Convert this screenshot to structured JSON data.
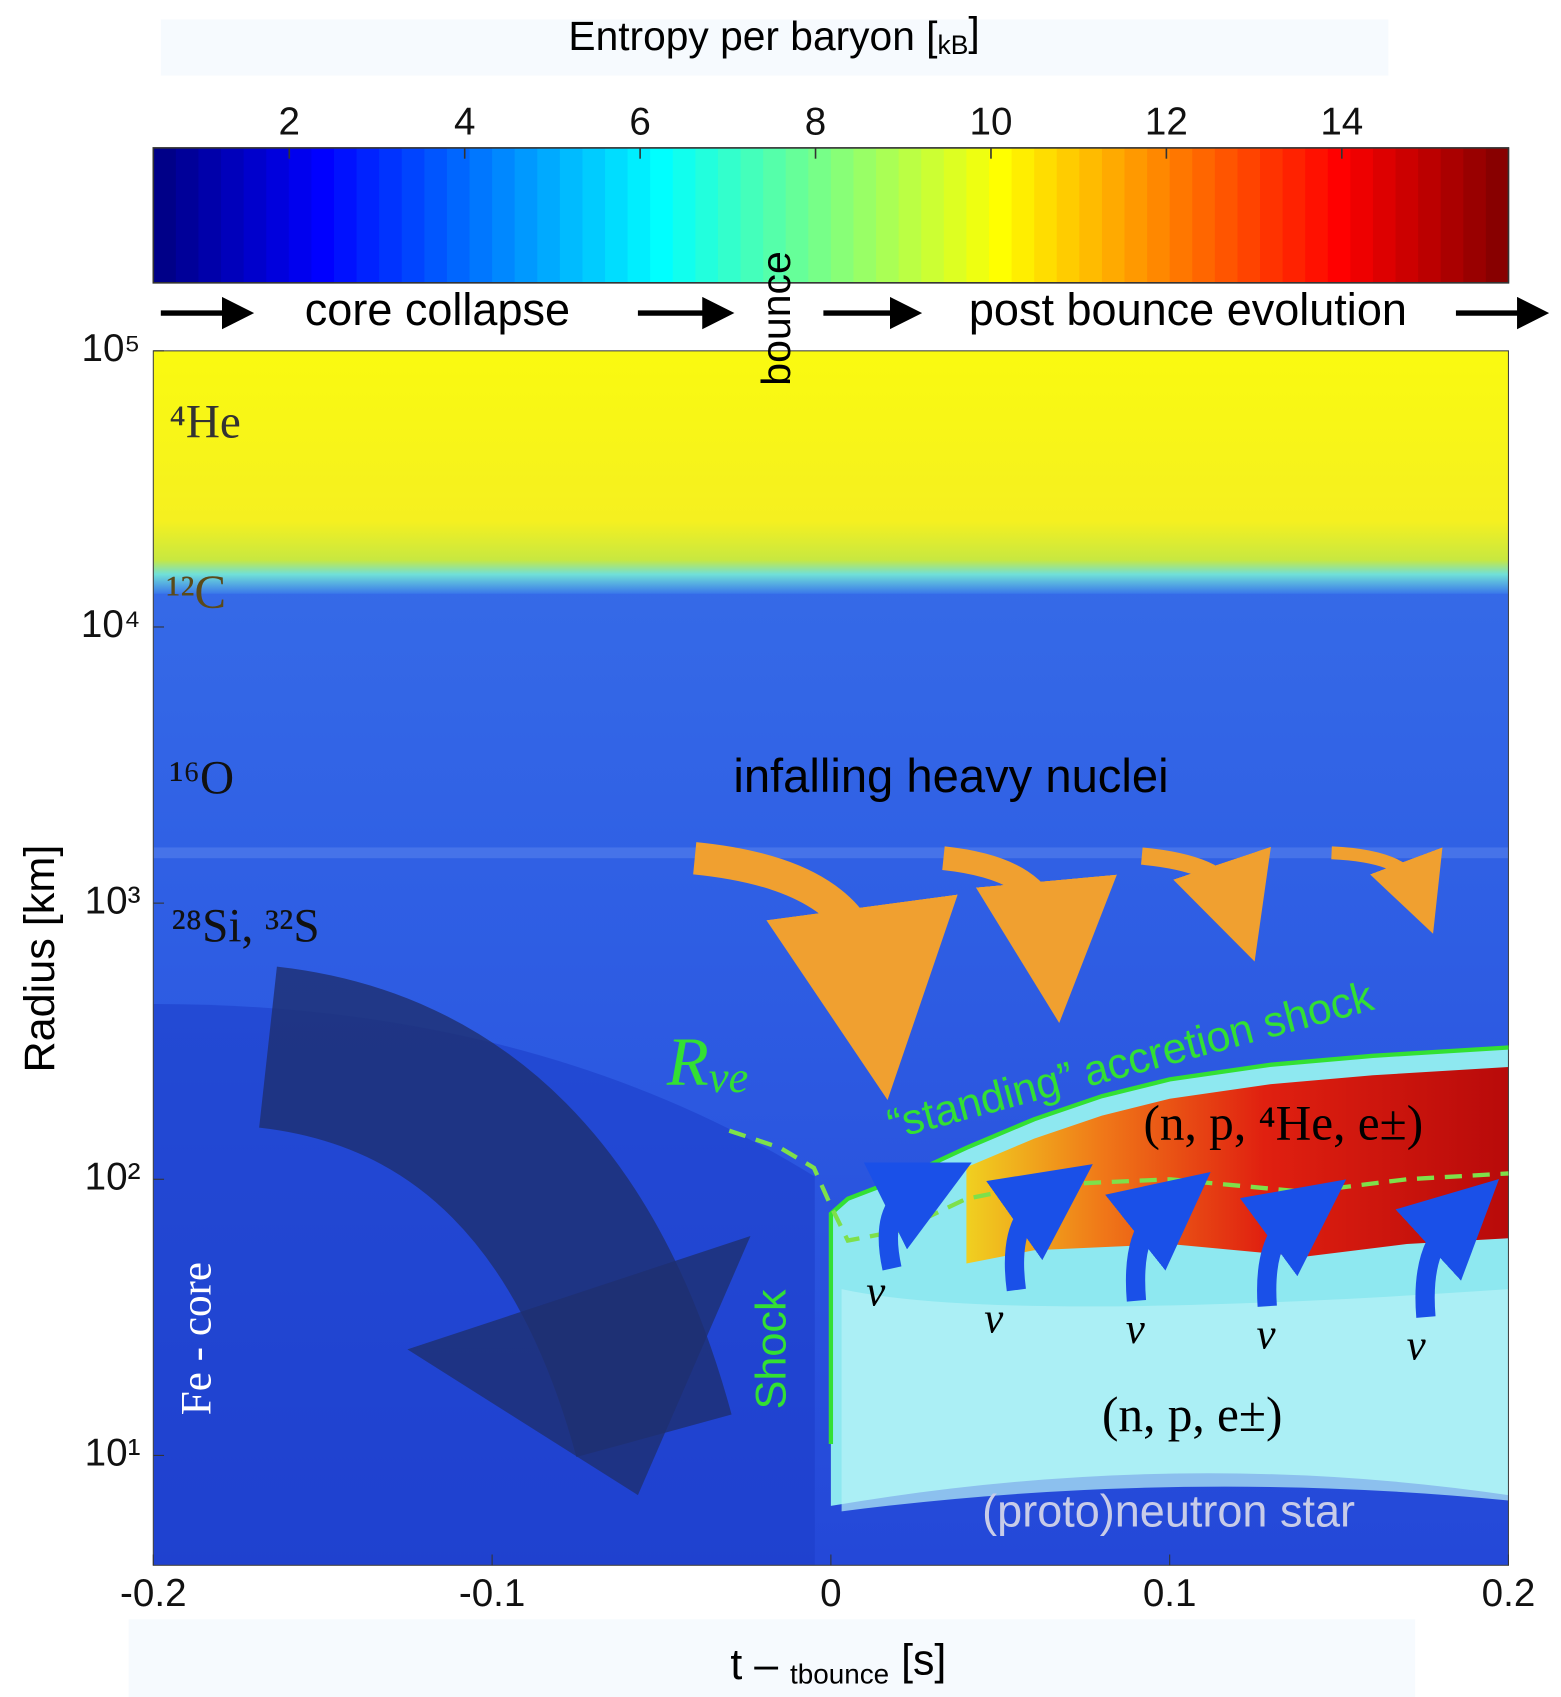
{
  "chart_data": {
    "type": "heatmap",
    "colorbar_label": "Entropy per baryon [kB]",
    "colormap": "jet",
    "clim": [
      0.45,
      15.9
    ],
    "cticks": [
      2,
      4,
      6,
      8,
      10,
      12,
      14
    ],
    "xlabel": "t – tbounce  [s]",
    "ylabel": "Radius  [km]",
    "xlim": [
      -0.2,
      0.2
    ],
    "xticks": [
      -0.2,
      -0.1,
      0,
      0.1,
      0.2
    ],
    "ylim": [
      4,
      100000
    ],
    "log_y": true,
    "yticks": [
      {
        "value": 100000,
        "label": "10⁵"
      },
      {
        "value": 10000,
        "label": "10⁴"
      },
      {
        "value": 1000,
        "label": "10³"
      },
      {
        "value": 100,
        "label": "10²"
      },
      {
        "value": 10,
        "label": "10¹"
      }
    ],
    "series": [
      {
        "color": "#33e033",
        "style": "solid",
        "x": [
          0,
          0,
          0.005,
          0.02,
          0.04,
          0.06,
          0.08,
          0.1,
          0.13,
          0.16,
          0.2
        ],
        "values": [
          11,
          75,
          85,
          100,
          130,
          165,
          200,
          230,
          260,
          280,
          300
        ]
      },
      {
        "color": "#7ee04a",
        "style": "dashed",
        "x": [
          -0.03,
          -0.015,
          -0.005,
          0,
          0.005,
          0.02,
          0.04,
          0.06,
          0.1,
          0.14,
          0.17,
          0.2
        ],
        "values": [
          150,
          130,
          110,
          80,
          60,
          65,
          85,
          95,
          100,
          90,
          100,
          105
        ]
      }
    ],
    "annotations": [
      "core collapse",
      "bounce",
      "post bounce evolution",
      "⁴He",
      "¹²C",
      "¹⁶O",
      "²⁸Si, ³²S",
      "infalling heavy nuclei",
      "“standing” accretion shock",
      "Rνe",
      "(n, p, ⁴He, e±)",
      "Shock",
      "ν",
      "ν",
      "ν",
      "ν",
      "ν",
      "(n, p, e±)",
      "(proto)neutron star",
      "Fe - core"
    ]
  }
}
